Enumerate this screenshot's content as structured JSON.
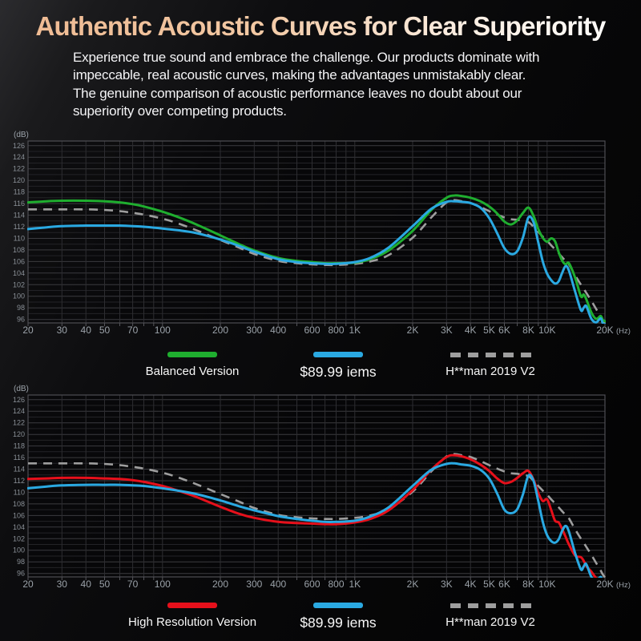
{
  "header": {
    "title": "Authentic Acoustic Curves for Clear Superiority",
    "description_lines": [
      "Experience true sound and embrace the challenge. Our products dominate with",
      "impeccable, real acoustic curves, making the advantages unmistakably clear.",
      "The genuine comparison of acoustic performance leaves no doubt about our",
      "superiority over competing products."
    ],
    "title_gradient": [
      "#efba92",
      "#ffffff"
    ]
  },
  "chart_data": [
    {
      "type": "line",
      "title": "",
      "x_scale": "log",
      "grid": true,
      "legend_position": "bottom",
      "x_axis_unit": "(Hz)",
      "y_axis_unit": "(dB)",
      "xlim": [
        20,
        20000
      ],
      "ylim": [
        96,
        126
      ],
      "y_ticks": [
        126,
        124,
        122,
        120,
        118,
        116,
        114,
        112,
        110,
        108,
        106,
        104,
        102,
        100,
        98,
        96
      ],
      "x_tick_values": [
        20,
        30,
        40,
        50,
        70,
        100,
        200,
        300,
        400,
        600,
        800,
        1000,
        2000,
        3000,
        4000,
        5000,
        6000,
        8000,
        10000,
        20000
      ],
      "x_tick_labels": [
        "20",
        "30",
        "40",
        "50",
        "70",
        "100",
        "200",
        "300",
        "400",
        "600",
        "800",
        "1K",
        "2K",
        "3K",
        "4K",
        "5K",
        "6K",
        "8K",
        "10K",
        "20K"
      ],
      "frequencies_hz": [
        20,
        25,
        30,
        40,
        50,
        60,
        70,
        80,
        100,
        120,
        150,
        200,
        250,
        300,
        400,
        500,
        600,
        700,
        800,
        1000,
        1200,
        1500,
        2000,
        2500,
        3000,
        3300,
        3600,
        4000,
        4500,
        5000,
        5500,
        6000,
        6500,
        7000,
        7500,
        8000,
        8500,
        9000,
        9500,
        10000,
        10500,
        11000,
        11500,
        12000,
        12500,
        13000,
        14000,
        15000,
        15500,
        16000,
        17000,
        18000,
        19000,
        19500,
        20000
      ],
      "series": [
        {
          "name": "Balanced Version",
          "color": "#1fae2f",
          "style": "solid",
          "values_db": [
            116.2,
            116.4,
            116.5,
            116.5,
            116.4,
            116.2,
            115.9,
            115.5,
            114.6,
            113.7,
            112.4,
            110.5,
            109.0,
            107.9,
            106.6,
            106.1,
            105.9,
            105.7,
            105.7,
            105.8,
            106.4,
            107.9,
            111.3,
            114.9,
            117.0,
            117.4,
            117.3,
            117.0,
            116.4,
            115.5,
            114.3,
            112.9,
            112.4,
            113.1,
            114.4,
            115.3,
            113.9,
            111.6,
            110.1,
            109.4,
            110.0,
            109.5,
            107.6,
            106.1,
            105.5,
            105.7,
            103.2,
            100.0,
            100.3,
            99.5,
            97.2,
            96.1,
            96.6,
            95.9,
            95.7
          ]
        },
        {
          "name": "$89.99 iems",
          "color": "#2aa9e2",
          "style": "solid",
          "values_db": [
            111.6,
            111.9,
            112.1,
            112.2,
            112.2,
            112.2,
            112.1,
            112.0,
            111.7,
            111.4,
            110.9,
            109.8,
            108.7,
            107.7,
            106.4,
            105.9,
            105.7,
            105.6,
            105.6,
            105.9,
            106.6,
            108.4,
            112.1,
            115.1,
            116.3,
            116.4,
            116.3,
            116.1,
            115.3,
            113.5,
            110.9,
            108.3,
            107.3,
            107.8,
            110.2,
            113.6,
            112.8,
            109.3,
            106.0,
            103.9,
            102.8,
            102.2,
            102.6,
            104.1,
            105.2,
            104.4,
            100.8,
            97.6,
            98.0,
            98.3,
            96.1,
            95.5,
            96.2,
            95.3,
            95.2
          ]
        },
        {
          "name": "H**man 2019 V2",
          "color": "#9e9e9e",
          "style": "dashed",
          "values_db": [
            115.0,
            115.0,
            115.0,
            115.0,
            114.9,
            114.7,
            114.4,
            114.1,
            113.4,
            112.6,
            111.4,
            109.7,
            108.4,
            107.3,
            106.1,
            105.7,
            105.5,
            105.4,
            105.4,
            105.6,
            106.0,
            107.1,
            110.1,
            113.6,
            116.2,
            116.6,
            116.4,
            116.1,
            115.4,
            114.7,
            114.1,
            113.6,
            113.3,
            113.2,
            113.0,
            112.8,
            112.0,
            111.1,
            110.3,
            109.6,
            108.8,
            108.1,
            107.4,
            106.7,
            106.1,
            105.5,
            103.6,
            102.0,
            101.3,
            100.6,
            99.2,
            97.8,
            96.5,
            95.8,
            95.3
          ]
        }
      ]
    },
    {
      "type": "line",
      "title": "",
      "x_scale": "log",
      "grid": true,
      "legend_position": "bottom",
      "x_axis_unit": "(Hz)",
      "y_axis_unit": "(dB)",
      "xlim": [
        20,
        20000
      ],
      "ylim": [
        96,
        126
      ],
      "y_ticks": [
        126,
        124,
        122,
        120,
        118,
        116,
        114,
        112,
        110,
        108,
        106,
        104,
        102,
        100,
        98,
        96
      ],
      "x_tick_values": [
        20,
        30,
        40,
        50,
        70,
        100,
        200,
        300,
        400,
        600,
        800,
        1000,
        2000,
        3000,
        4000,
        5000,
        6000,
        8000,
        10000,
        20000
      ],
      "x_tick_labels": [
        "20",
        "30",
        "40",
        "50",
        "70",
        "100",
        "200",
        "300",
        "400",
        "600",
        "800",
        "1K",
        "2K",
        "3K",
        "4K",
        "5K",
        "6K",
        "8K",
        "10K",
        "20K"
      ],
      "frequencies_hz": [
        20,
        25,
        30,
        40,
        50,
        60,
        70,
        80,
        100,
        120,
        150,
        200,
        250,
        300,
        400,
        500,
        600,
        700,
        800,
        1000,
        1200,
        1500,
        2000,
        2500,
        3000,
        3300,
        3600,
        4000,
        4500,
        5000,
        5500,
        6000,
        6500,
        7000,
        7500,
        8000,
        8500,
        9000,
        9500,
        10000,
        10500,
        11000,
        11500,
        12000,
        12500,
        13000,
        14000,
        15000,
        15500,
        16000,
        17000,
        18000,
        19000,
        19500,
        20000
      ],
      "series": [
        {
          "name": "High Resolution Version",
          "color": "#e6101b",
          "style": "solid",
          "values_db": [
            112.3,
            112.4,
            112.5,
            112.5,
            112.4,
            112.3,
            112.1,
            111.8,
            111.1,
            110.3,
            109.2,
            107.5,
            106.3,
            105.6,
            104.9,
            104.7,
            104.6,
            104.5,
            104.5,
            104.8,
            105.4,
            106.9,
            110.4,
            113.9,
            116.1,
            116.4,
            116.2,
            115.7,
            114.8,
            113.7,
            112.4,
            111.6,
            111.8,
            112.5,
            113.3,
            113.7,
            112.2,
            109.9,
            108.5,
            108.8,
            107.0,
            105.1,
            104.8,
            103.6,
            102.3,
            101.0,
            99.1,
            98.8,
            98.2,
            97.3,
            96.3,
            95.2,
            94.8,
            94.6,
            94.4
          ]
        },
        {
          "name": "$89.99 iems",
          "color": "#2aa9e2",
          "style": "solid",
          "values_db": [
            110.7,
            111.0,
            111.2,
            111.3,
            111.3,
            111.3,
            111.2,
            111.1,
            110.7,
            110.3,
            109.7,
            108.6,
            107.6,
            106.9,
            105.9,
            105.4,
            105.1,
            104.9,
            104.9,
            105.1,
            105.8,
            107.4,
            111.1,
            113.9,
            114.9,
            115.0,
            114.8,
            114.6,
            113.9,
            112.4,
            109.8,
            107.0,
            106.4,
            107.1,
            109.7,
            112.9,
            112.0,
            108.5,
            104.9,
            102.6,
            101.6,
            101.3,
            101.9,
            103.4,
            104.2,
            103.2,
            99.5,
            96.7,
            97.2,
            97.6,
            95.4,
            94.8,
            95.4,
            94.7,
            94.3
          ]
        },
        {
          "name": "H**man 2019 V2",
          "color": "#9e9e9e",
          "style": "dashed",
          "values_db": [
            115.0,
            115.0,
            115.0,
            115.0,
            114.9,
            114.7,
            114.4,
            114.1,
            113.4,
            112.6,
            111.4,
            109.7,
            108.4,
            107.3,
            106.1,
            105.7,
            105.5,
            105.4,
            105.4,
            105.6,
            106.0,
            107.1,
            110.1,
            113.6,
            116.2,
            116.6,
            116.4,
            116.1,
            115.4,
            114.7,
            114.1,
            113.6,
            113.3,
            113.2,
            113.0,
            112.8,
            112.0,
            111.1,
            110.3,
            109.6,
            108.8,
            108.1,
            107.4,
            106.7,
            106.1,
            105.5,
            103.6,
            102.0,
            101.3,
            100.6,
            99.2,
            97.8,
            96.5,
            95.8,
            95.3
          ]
        }
      ]
    }
  ],
  "theme": {
    "grid_major_color": "#3b3b3f",
    "grid_minor_color": "#232327",
    "grid_vertical_color": "#2d2d31",
    "plot_border_color": "#4e4e53",
    "y_tick_color": "#8a9097",
    "x_tick_color": "#9ba2a9"
  }
}
